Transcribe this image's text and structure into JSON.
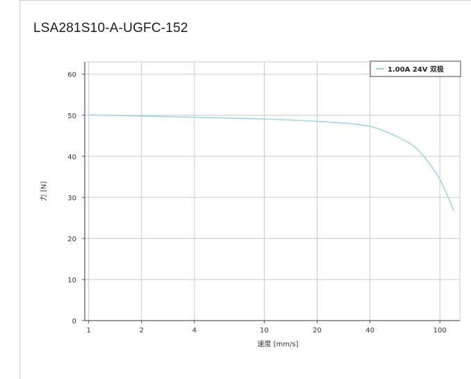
{
  "title": "LSA281S10-A-UGFC-152",
  "chart_data": {
    "type": "line",
    "title": "LSA281S10-A-UGFC-152",
    "xlabel": "速度 [mm/s]",
    "ylabel": "力 [N]",
    "xscale": "log",
    "xlim": [
      0.95,
      130
    ],
    "ylim": [
      0,
      63
    ],
    "xticks": [
      1,
      2,
      4,
      10,
      20,
      40,
      100
    ],
    "xtick_labels": [
      "1",
      "2",
      "4",
      "10",
      "20",
      "40",
      "100"
    ],
    "yticks": [
      0,
      10,
      20,
      30,
      40,
      50,
      60
    ],
    "ytick_labels": [
      "0",
      "10",
      "20",
      "30",
      "40",
      "50",
      "60"
    ],
    "grid": true,
    "legend_position": "top-right",
    "series": [
      {
        "name": "1.00A 24V 双极",
        "color": "#9fd8e2",
        "x": [
          1,
          2,
          4,
          10,
          20,
          30,
          40,
          50,
          60,
          70,
          80,
          90,
          100,
          110,
          120
        ],
        "y": [
          50.1,
          49.8,
          49.5,
          49.1,
          48.5,
          48.0,
          47.3,
          45.9,
          44.3,
          42.7,
          40.3,
          37.4,
          34.4,
          30.6,
          26.8
        ]
      }
    ]
  }
}
